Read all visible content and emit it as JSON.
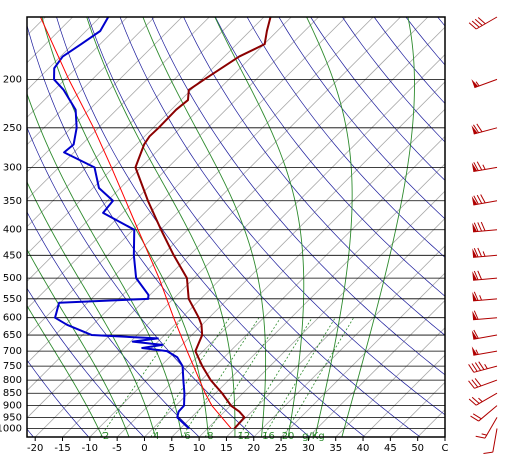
{
  "chart_data": {
    "type": "skewt",
    "xlim": [
      -21.5,
      55
    ],
    "ylim": [
      1040,
      150
    ],
    "ylog": true,
    "skew": 1,
    "grid": true,
    "xticks": [
      -20,
      -15,
      -10,
      -5,
      0,
      5,
      10,
      15,
      20,
      25,
      30,
      35,
      40,
      45,
      50,
      {
        "value": 55,
        "label": "C"
      }
    ],
    "yticks": [
      200,
      250,
      300,
      350,
      400,
      450,
      500,
      550,
      600,
      650,
      700,
      750,
      800,
      850,
      900,
      950,
      1000
    ],
    "isotherms": [
      -120,
      -115,
      -110,
      -105,
      -100,
      -95,
      -90,
      -85,
      -80,
      -75,
      -70,
      -65,
      -60,
      -55,
      -50,
      -45,
      -40,
      -35,
      -30,
      -25,
      -20,
      -15,
      -10,
      -5,
      0,
      5,
      10,
      15,
      20,
      25,
      30,
      35,
      40,
      45,
      50
    ],
    "isotherm_color": "#a8a8a8",
    "dry_adiabats": [
      250,
      260,
      270,
      280,
      290,
      300,
      310,
      320,
      330,
      340,
      350,
      360,
      370,
      380,
      390,
      400,
      410,
      420,
      430,
      440,
      450,
      460
    ],
    "dry_adiabat_color": "#1c1c9c",
    "moist_adiabats": [
      -10,
      -5,
      0,
      5,
      10,
      15,
      20,
      25,
      30,
      35
    ],
    "moist_adiabat_color": "#2e8b2e",
    "mixing_ratios": [
      2,
      4,
      6,
      8,
      12,
      16,
      20
    ],
    "mixing_ratio_unit": "g/Kg",
    "mixing_ratio_top": 600,
    "series": [
      {
        "color": "#8b0000",
        "width": 2,
        "pressure": [
          150,
          160,
          170,
          180,
          200,
          210,
          220,
          230,
          250,
          260,
          270,
          300,
          350,
          400,
          450,
          500,
          550,
          600,
          620,
          650,
          700,
          750,
          800,
          850,
          900,
          925,
          950,
          1000
        ],
        "values": [
          -53.8,
          -51.9,
          -49.9,
          -52.3,
          -54.5,
          -55.4,
          -53.7,
          -54.1,
          -54,
          -54.1,
          -53.6,
          -51,
          -42.6,
          -34.9,
          -27.9,
          -21.3,
          -17.2,
          -11.9,
          -10.1,
          -8.1,
          -6.4,
          -2.4,
          1.7,
          6.2,
          10.1,
          12.7,
          14.7,
          14.9
        ]
      },
      {
        "color": "#0000cc",
        "width": 2,
        "pressure": [
          150,
          160,
          170,
          180,
          190,
          200,
          210,
          230,
          250,
          270,
          280,
          300,
          330,
          350,
          370,
          400,
          450,
          500,
          540,
          550,
          560,
          600,
          620,
          650,
          660,
          670,
          680,
          690,
          700,
          720,
          750,
          800,
          850,
          900,
          925,
          950,
          1000
        ],
        "values": [
          -83.5,
          -82.4,
          -83.5,
          -84.6,
          -84,
          -82,
          -78.3,
          -72.5,
          -69,
          -66.5,
          -66.8,
          -58.5,
          -53.9,
          -49,
          -48.6,
          -39.8,
          -35.2,
          -30.6,
          -25.3,
          -24.6,
          -40.2,
          -38.2,
          -34.7,
          -28.3,
          -15.6,
          -19.6,
          -13.6,
          -16.7,
          -11.6,
          -8.6,
          -6,
          -3.3,
          -0.7,
          1.5,
          1.6,
          2.4,
          6.6
        ]
      },
      {
        "color": "#ff0000",
        "width": 1,
        "pressure": [
          150,
          200,
          250,
          300,
          400,
          500,
          600,
          700,
          850,
          900,
          1000
        ],
        "values": [
          -95.9,
          -79.3,
          -65.9,
          -55.4,
          -39.1,
          -26.4,
          -16.5,
          -7.9,
          3.1,
          6.6,
          14.3
        ]
      }
    ],
    "winds": {
      "color": "#b00000",
      "pressure": [
        150,
        200,
        250,
        300,
        350,
        400,
        450,
        500,
        550,
        600,
        650,
        700,
        750,
        800,
        850,
        900,
        950,
        1000
      ],
      "speed": [
        40,
        55,
        70,
        75,
        80,
        80,
        75,
        70,
        65,
        60,
        60,
        55,
        45,
        30,
        25,
        20,
        15,
        10
      ],
      "direction": [
        240,
        250,
        255,
        260,
        260,
        265,
        265,
        265,
        265,
        265,
        260,
        260,
        255,
        250,
        240,
        230,
        210,
        190
      ]
    }
  }
}
